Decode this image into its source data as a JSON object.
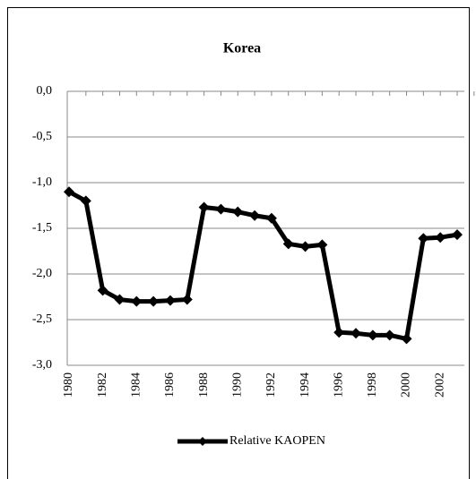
{
  "chart_data": {
    "type": "line",
    "title": "Korea",
    "categories": [
      "1980",
      null,
      "1982",
      null,
      "1984",
      null,
      "1986",
      null,
      "1988",
      null,
      "1990",
      null,
      "1992",
      null,
      "1994",
      null,
      "1996",
      null,
      "1998",
      null,
      "2000",
      null,
      "2002",
      null
    ],
    "series": [
      {
        "name": "Relative KAOPEN",
        "color": "#000000",
        "values": [
          -1.1,
          -1.2,
          -2.18,
          -2.28,
          -2.3,
          -2.3,
          -2.29,
          -2.28,
          -1.27,
          -1.29,
          -1.32,
          -1.36,
          -1.39,
          -1.67,
          -1.7,
          -1.68,
          -2.64,
          -2.65,
          -2.67,
          -2.67,
          -2.71,
          -1.61,
          -1.6,
          -1.57
        ]
      }
    ],
    "ylim": [
      -3,
      0
    ],
    "yticks": [
      {
        "value": 0,
        "label": "0,0"
      },
      {
        "value": -0.5,
        "label": "-0,5"
      },
      {
        "value": -1,
        "label": "-1,0"
      },
      {
        "value": -1.5,
        "label": "-1,5"
      },
      {
        "value": -2,
        "label": "-2,0"
      },
      {
        "value": -2.5,
        "label": "-2,5"
      },
      {
        "value": -3,
        "label": "-3,0"
      }
    ],
    "grid": true,
    "legend": "bottom"
  }
}
